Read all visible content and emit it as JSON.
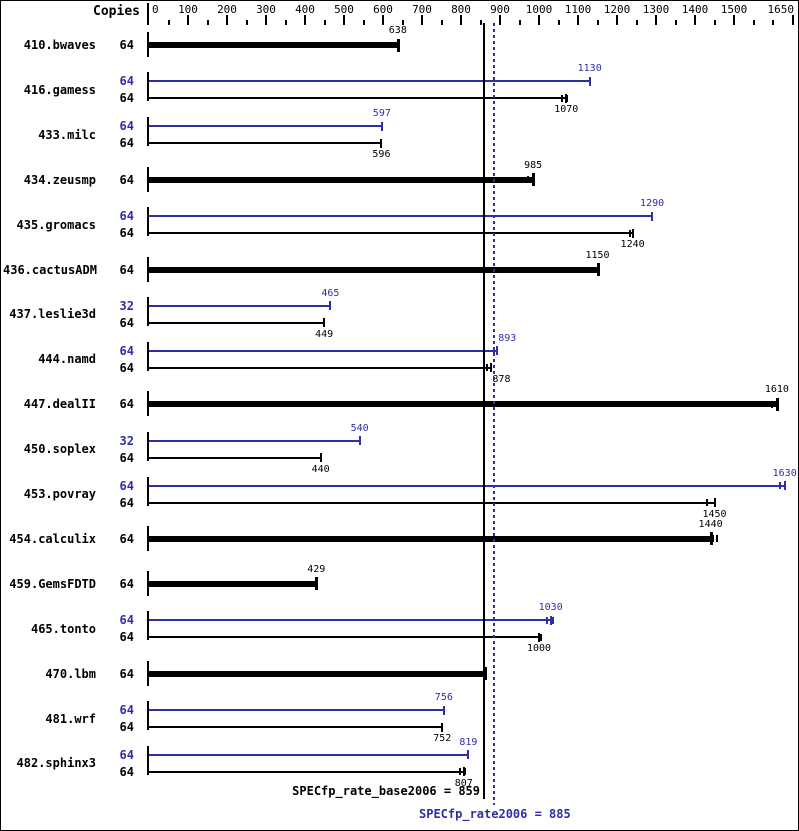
{
  "colors": {
    "peak": "#2e2ea8",
    "base": "#000000",
    "background": "#ffffff"
  },
  "header": {
    "copies_label": "Copies"
  },
  "chart_data": {
    "type": "bar",
    "orientation": "horizontal",
    "axis": {
      "min": 0,
      "max": 1650,
      "minor_step": 50,
      "labeled_ticks": [
        0,
        100,
        200,
        300,
        400,
        500,
        600,
        700,
        800,
        900,
        1000,
        1100,
        1200,
        1300,
        1400,
        1500,
        1650
      ],
      "tick_labels": [
        "0",
        "100",
        "200",
        "300",
        "400",
        "500",
        "600",
        "700",
        "800",
        "900",
        "1000",
        "1100",
        "1200",
        "1300",
        "1400",
        "1500",
        "1650"
      ]
    },
    "copies_column_header": "Copies",
    "benchmarks": [
      {
        "name": "410.bwaves",
        "bars": [
          {
            "series": "base",
            "copies": "64",
            "value": 638,
            "marks": []
          }
        ]
      },
      {
        "name": "416.gamess",
        "bars": [
          {
            "series": "peak",
            "copies": "64",
            "value": 1130,
            "marks": []
          },
          {
            "series": "base",
            "copies": "64",
            "value": 1070,
            "marks": [
              1058,
              1073
            ]
          }
        ]
      },
      {
        "name": "433.milc",
        "bars": [
          {
            "series": "peak",
            "copies": "64",
            "value": 597,
            "marks": []
          },
          {
            "series": "base",
            "copies": "64",
            "value": 596,
            "marks": []
          }
        ]
      },
      {
        "name": "434.zeusmp",
        "bars": [
          {
            "series": "base",
            "copies": "64",
            "value": 985,
            "marks": [
              971
            ]
          }
        ]
      },
      {
        "name": "435.gromacs",
        "bars": [
          {
            "series": "peak",
            "copies": "64",
            "value": 1290,
            "marks": []
          },
          {
            "series": "base",
            "copies": "64",
            "value": 1240,
            "marks": [
              1234
            ]
          }
        ]
      },
      {
        "name": "436.cactusADM",
        "bars": [
          {
            "series": "base",
            "copies": "64",
            "value": 1150,
            "marks": []
          }
        ]
      },
      {
        "name": "437.leslie3d",
        "bars": [
          {
            "series": "peak",
            "copies": "32",
            "value": 465,
            "marks": []
          },
          {
            "series": "base",
            "copies": "64",
            "value": 449,
            "marks": []
          }
        ]
      },
      {
        "name": "444.namd",
        "bars": [
          {
            "series": "peak",
            "copies": "64",
            "value": 893,
            "marks": [
              884
            ],
            "label_align": "left"
          },
          {
            "series": "base",
            "copies": "64",
            "value": 878,
            "marks": [
              867
            ],
            "label_align": "left"
          }
        ]
      },
      {
        "name": "447.dealII",
        "bars": [
          {
            "series": "base",
            "copies": "64",
            "value": 1610,
            "marks": [
              1597
            ]
          }
        ]
      },
      {
        "name": "450.soplex",
        "bars": [
          {
            "series": "peak",
            "copies": "32",
            "value": 540,
            "marks": []
          },
          {
            "series": "base",
            "copies": "64",
            "value": 440,
            "marks": []
          }
        ]
      },
      {
        "name": "453.povray",
        "bars": [
          {
            "series": "peak",
            "copies": "64",
            "value": 1630,
            "marks": [
              1617
            ]
          },
          {
            "series": "base",
            "copies": "64",
            "value": 1450,
            "marks": [
              1432
            ]
          }
        ]
      },
      {
        "name": "454.calculix",
        "bars": [
          {
            "series": "base",
            "copies": "64",
            "value": 1440,
            "marks": [
              1447,
              1456
            ]
          }
        ]
      },
      {
        "name": "459.GemsFDTD",
        "bars": [
          {
            "series": "base",
            "copies": "64",
            "value": 429,
            "marks": []
          }
        ]
      },
      {
        "name": "465.tonto",
        "bars": [
          {
            "series": "peak",
            "copies": "64",
            "value": 1030,
            "marks": [
              1021,
              1036
            ]
          },
          {
            "series": "base",
            "copies": "64",
            "value": 1000,
            "marks": [
              1005
            ]
          }
        ]
      },
      {
        "name": "470.lbm",
        "bars": [
          {
            "series": "base",
            "copies": "64",
            "value": 861,
            "marks": [],
            "label_align": "right"
          }
        ]
      },
      {
        "name": "481.wrf",
        "bars": [
          {
            "series": "peak",
            "copies": "64",
            "value": 756,
            "marks": []
          },
          {
            "series": "base",
            "copies": "64",
            "value": 752,
            "marks": []
          }
        ]
      },
      {
        "name": "482.sphinx3",
        "bars": [
          {
            "series": "peak",
            "copies": "64",
            "value": 819,
            "marks": []
          },
          {
            "series": "base",
            "copies": "64",
            "value": 807,
            "marks": [
              798,
              810
            ]
          }
        ]
      }
    ],
    "reference_lines": [
      {
        "name": "base_mean",
        "value": 859,
        "style": "solid",
        "color": "#000000"
      },
      {
        "name": "peak_mean",
        "value": 885,
        "style": "dotted",
        "color": "#2e2ea8"
      }
    ],
    "summary": [
      {
        "name": "base",
        "text": "SPECfp_rate_base2006 = 859",
        "color": "#000000"
      },
      {
        "name": "peak",
        "text": "SPECfp_rate2006 = 885",
        "color": "#2e2ea8"
      }
    ],
    "legend": "off",
    "grid": "off"
  }
}
